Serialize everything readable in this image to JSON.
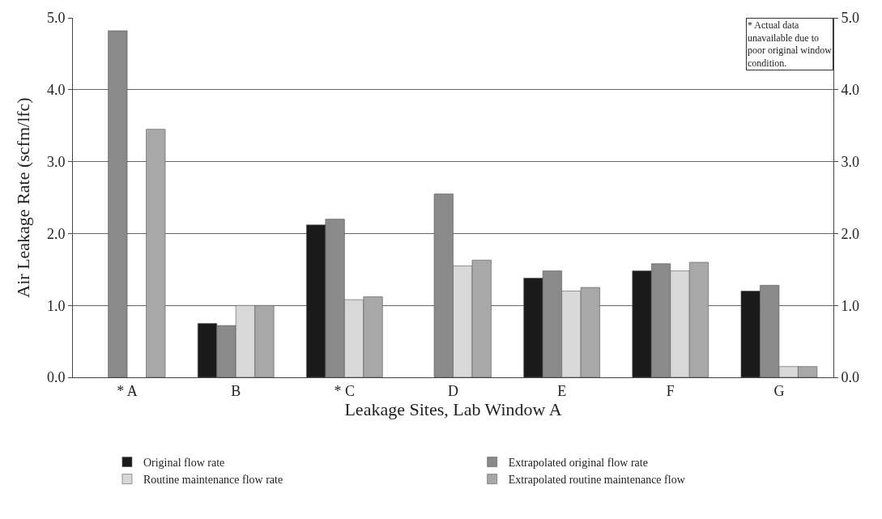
{
  "chart_data": {
    "type": "bar",
    "xlabel": "Leakage Sites, Lab Window A",
    "ylabel": "Air Leakage Rate (scfm/lfc)",
    "categories": [
      "* A",
      "B",
      "* C",
      "D",
      "E",
      "F",
      "G"
    ],
    "series": [
      {
        "name": "Original flow rate",
        "color": "#1a1a1a",
        "values": [
          null,
          0.75,
          2.12,
          null,
          1.38,
          1.48,
          1.2
        ]
      },
      {
        "name": "Extrapolated original flow rate",
        "color": "#8a8a8a",
        "values": [
          4.82,
          0.72,
          2.2,
          2.55,
          1.48,
          1.58,
          1.28
        ]
      },
      {
        "name": "Routine maintenance flow rate",
        "color": "#d8d8d8",
        "values": [
          null,
          1.0,
          1.08,
          1.55,
          1.2,
          1.48,
          0.15
        ]
      },
      {
        "name": "Extrapolated routine maintenance flow",
        "color": "#a8a8a8",
        "values": [
          3.45,
          1.0,
          1.12,
          1.63,
          1.25,
          1.6,
          0.15
        ]
      }
    ],
    "ylim": [
      0,
      5
    ],
    "yticks": [
      {
        "value": 0,
        "label": "0.0"
      },
      {
        "value": 1,
        "label": "1.0"
      },
      {
        "value": 2,
        "label": "2.0"
      },
      {
        "value": 3,
        "label": "3.0"
      },
      {
        "value": 4,
        "label": "4.0"
      },
      {
        "value": 5,
        "label": "5.0"
      }
    ],
    "y2lim": [
      0,
      5
    ],
    "y2ticks": [
      {
        "value": 0,
        "label": "0.0"
      },
      {
        "value": 1,
        "label": "1.0"
      },
      {
        "value": 2,
        "label": "2.0"
      },
      {
        "value": 3,
        "label": "3.0"
      },
      {
        "value": 4,
        "label": "4.0"
      },
      {
        "value": 5,
        "label": "5.0"
      }
    ],
    "grid": "y",
    "legend": "bottom",
    "annotations": [
      "* Actual data$^{}$ unavailable due to poor original window condition."
    ]
  }
}
